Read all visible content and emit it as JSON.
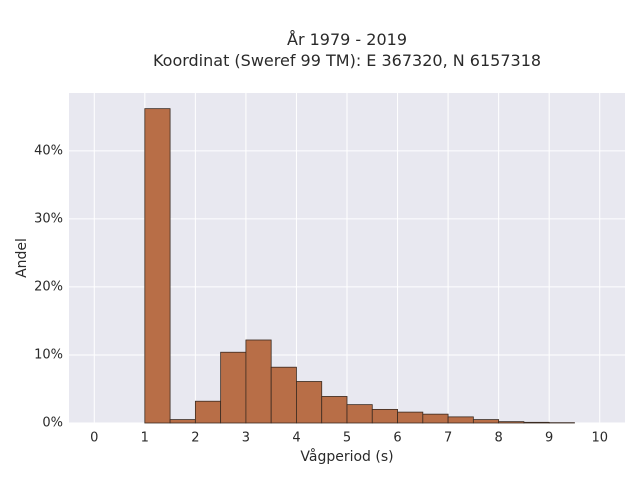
{
  "chart_data": {
    "type": "bar",
    "title_line1": "År 1979 - 2019",
    "title_line2": "Koordinat (Sweref 99 TM): E 367320, N 6157318",
    "xlabel": "Vågperiod (s)",
    "ylabel": "Andel",
    "xlim": [
      -0.5,
      10.5
    ],
    "ylim": [
      0,
      48.5
    ],
    "x_ticks": [
      0,
      1,
      2,
      3,
      4,
      5,
      6,
      7,
      8,
      9,
      10
    ],
    "x_tick_labels": [
      "0",
      "1",
      "2",
      "3",
      "4",
      "5",
      "6",
      "7",
      "8",
      "9",
      "10"
    ],
    "y_ticks": [
      0,
      10,
      20,
      30,
      40
    ],
    "y_tick_labels": [
      "0%",
      "10%",
      "20%",
      "30%",
      "40%"
    ],
    "bin_width": 0.5,
    "bins": [
      {
        "x0": 1.0,
        "value": 46.2
      },
      {
        "x0": 1.5,
        "value": 0.5
      },
      {
        "x0": 2.0,
        "value": 3.2
      },
      {
        "x0": 2.5,
        "value": 10.4
      },
      {
        "x0": 3.0,
        "value": 12.2
      },
      {
        "x0": 3.5,
        "value": 8.2
      },
      {
        "x0": 4.0,
        "value": 6.1
      },
      {
        "x0": 4.5,
        "value": 3.9
      },
      {
        "x0": 5.0,
        "value": 2.7
      },
      {
        "x0": 5.5,
        "value": 2.0
      },
      {
        "x0": 6.0,
        "value": 1.6
      },
      {
        "x0": 6.5,
        "value": 1.3
      },
      {
        "x0": 7.0,
        "value": 0.9
      },
      {
        "x0": 7.5,
        "value": 0.5
      },
      {
        "x0": 8.0,
        "value": 0.2
      },
      {
        "x0": 8.5,
        "value": 0.1
      },
      {
        "x0": 9.0,
        "value": 0.05
      }
    ],
    "bar_color": "#b86e47",
    "bar_edge_color": "#3a2a20",
    "plot_bg": "#e8e8f0",
    "grid": true,
    "grid_color": "#ffffff"
  }
}
